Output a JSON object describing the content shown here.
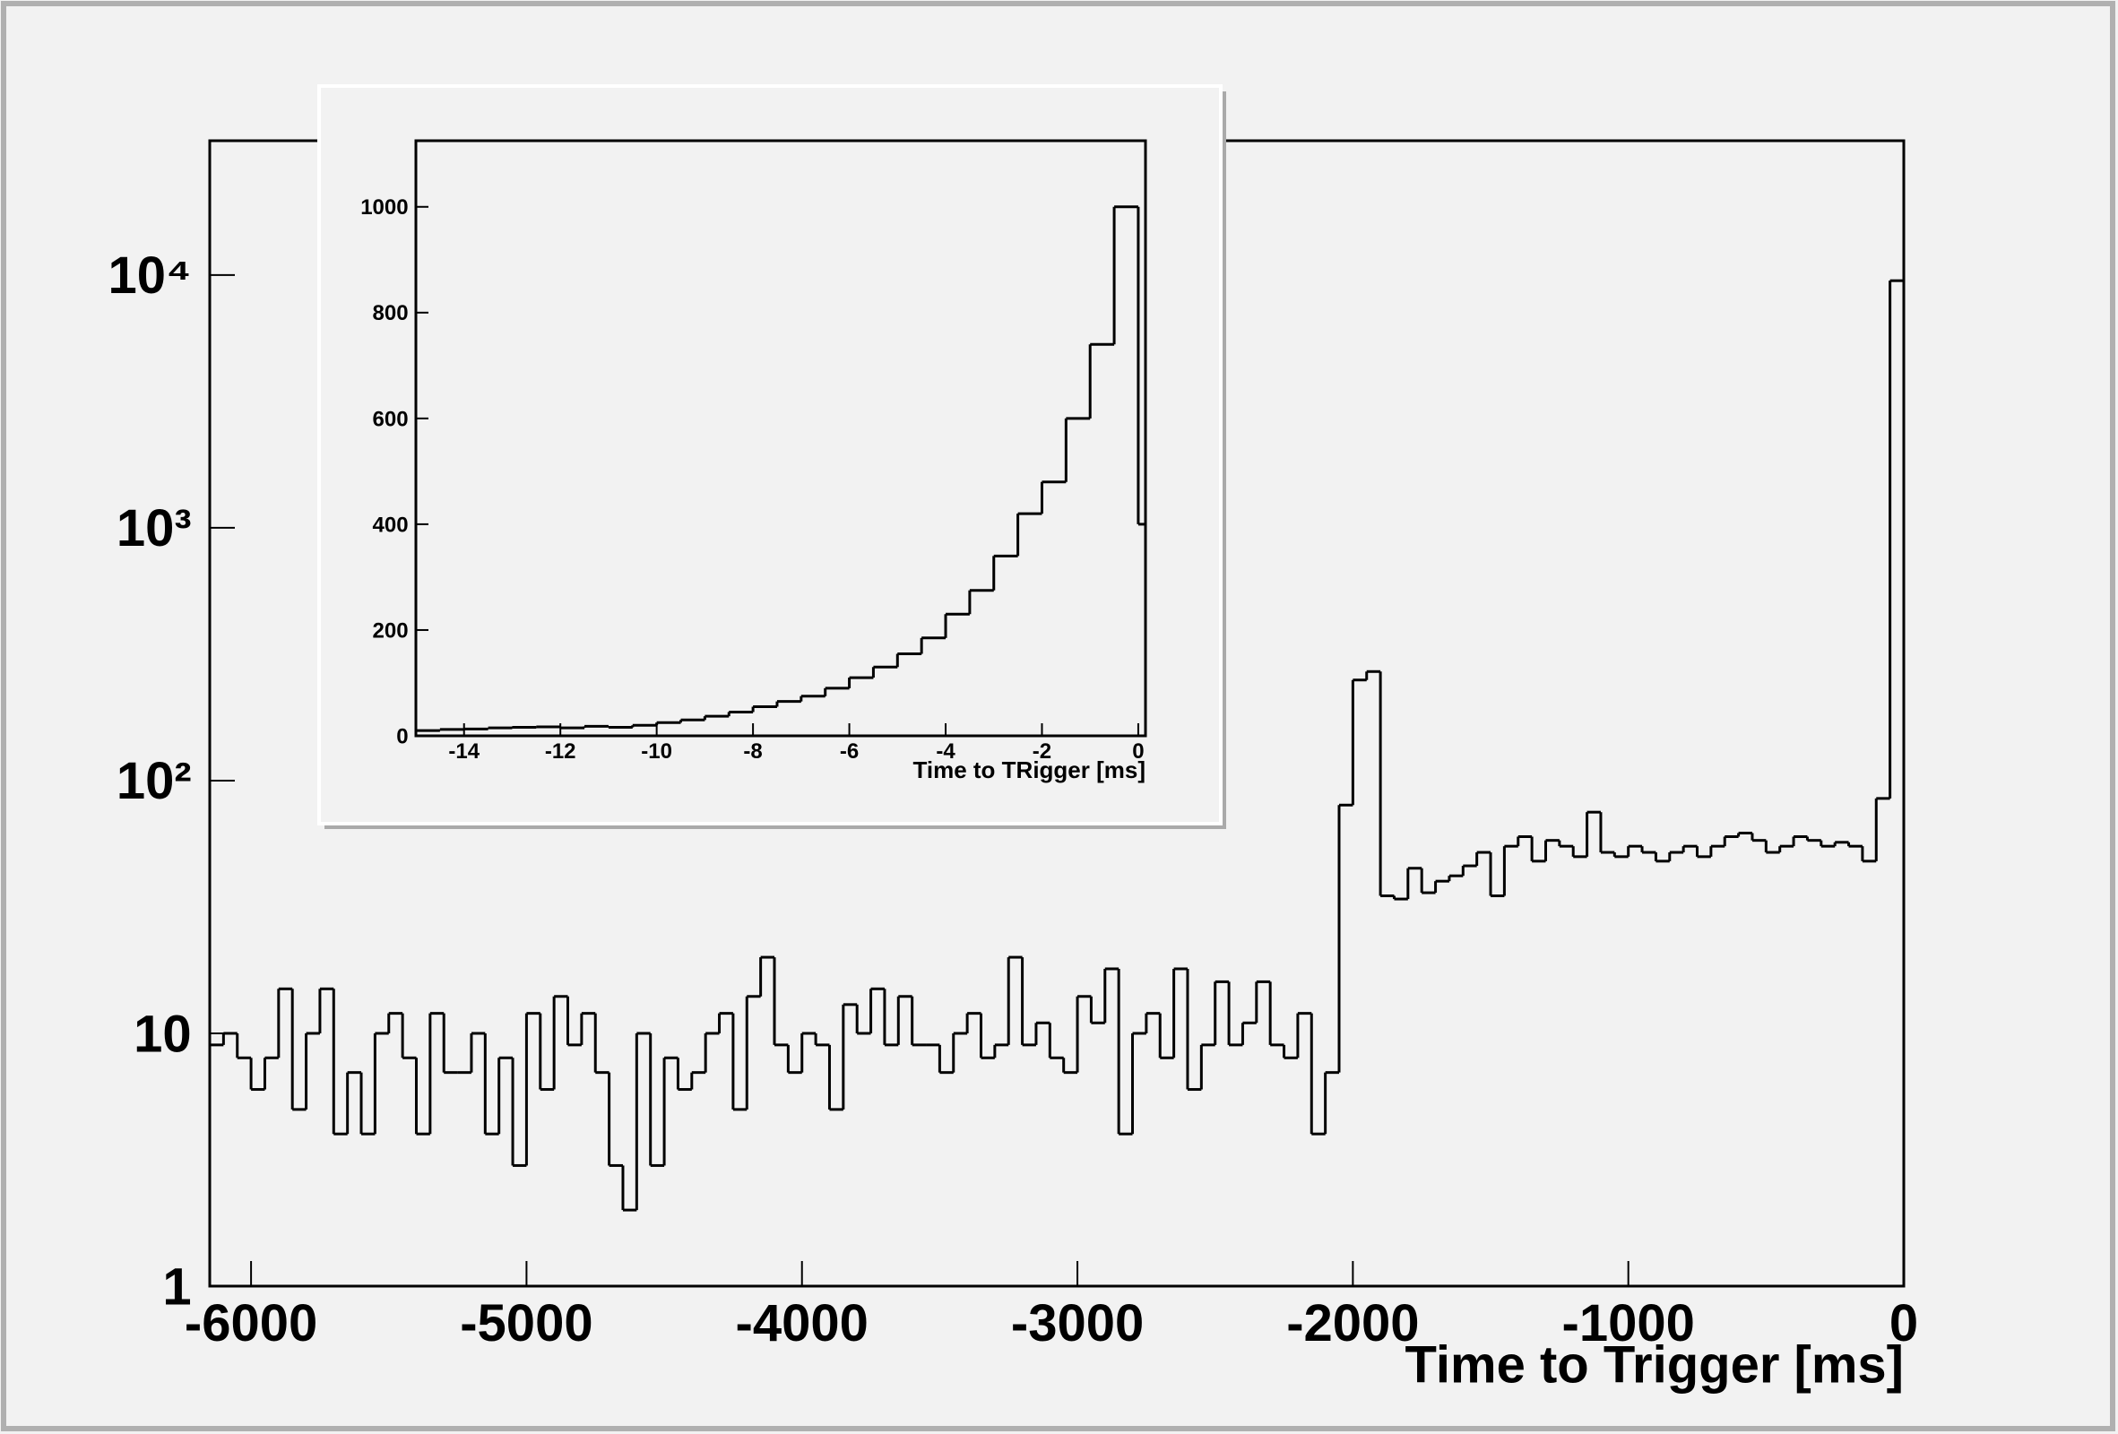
{
  "chart_data": [
    {
      "type": "histogram",
      "log_y": true,
      "color": "#000000",
      "xlabel": "Time to Trigger [ms]",
      "bins": [
        -6150,
        -6100,
        -6050,
        -6000,
        -5950,
        -5900,
        -5850,
        -5800,
        -5750,
        -5700,
        -5650,
        -5600,
        -5550,
        -5500,
        -5450,
        -5400,
        -5350,
        -5300,
        -5250,
        -5200,
        -5150,
        -5100,
        -5050,
        -5000,
        -4950,
        -4900,
        -4850,
        -4800,
        -4750,
        -4700,
        -4650,
        -4600,
        -4550,
        -4500,
        -4450,
        -4400,
        -4350,
        -4300,
        -4250,
        -4200,
        -4150,
        -4100,
        -4050,
        -4000,
        -3950,
        -3900,
        -3850,
        -3800,
        -3750,
        -3700,
        -3650,
        -3600,
        -3550,
        -3500,
        -3450,
        -3400,
        -3350,
        -3300,
        -3250,
        -3200,
        -3150,
        -3100,
        -3050,
        -3000,
        -2950,
        -2900,
        -2850,
        -2800,
        -2750,
        -2700,
        -2650,
        -2600,
        -2550,
        -2500,
        -2450,
        -2400,
        -2350,
        -2300,
        -2250,
        -2200,
        -2150,
        -2100,
        -2050,
        -2000,
        -1950,
        -1900,
        -1850,
        -1800,
        -1750,
        -1700,
        -1650,
        -1600,
        -1550,
        -1500,
        -1450,
        -1400,
        -1350,
        -1300,
        -1250,
        -1200,
        -1150,
        -1100,
        -1050,
        -1000,
        -950,
        -900,
        -850,
        -800,
        -750,
        -700,
        -650,
        -600,
        -550,
        -500,
        -450,
        -400,
        -350,
        -300,
        -250,
        -200,
        -150,
        -100,
        -50,
        0
      ],
      "values": [
        9,
        10,
        8,
        6,
        8,
        15,
        5,
        10,
        15,
        4,
        7,
        4,
        10,
        12,
        8,
        4,
        12,
        7,
        7,
        10,
        4,
        8,
        3,
        12,
        6,
        14,
        9,
        12,
        7,
        3,
        2,
        10,
        3,
        8,
        6,
        7,
        10,
        12,
        5,
        14,
        20,
        9,
        7,
        10,
        9,
        5,
        13,
        10,
        15,
        9,
        14,
        9,
        9,
        7,
        10,
        12,
        8,
        9,
        20,
        9,
        11,
        8,
        7,
        14,
        11,
        18,
        4,
        10,
        12,
        8,
        18,
        6,
        9,
        16,
        9,
        11,
        16,
        9,
        8,
        12,
        4,
        7,
        80,
        250,
        270,
        35,
        34,
        45,
        36,
        40,
        42,
        46,
        52,
        35,
        55,
        60,
        48,
        58,
        55,
        50,
        75,
        52,
        50,
        55,
        52,
        48,
        52,
        55,
        50,
        55,
        60,
        62,
        58,
        52,
        55,
        60,
        58,
        55,
        57,
        55,
        48,
        85,
        9500
      ],
      "xlim": [
        -6150,
        0
      ],
      "xticks": [
        -6000,
        -5000,
        -4000,
        -3000,
        -2000,
        -1000,
        0
      ],
      "ylim": [
        1,
        34000
      ],
      "yticks": [
        1,
        10,
        {
          "value": 100,
          "label": "10²"
        },
        {
          "value": 1000,
          "label": "10³"
        },
        {
          "value": 10000,
          "label": "10⁴"
        }
      ]
    },
    {
      "type": "histogram",
      "log_y": false,
      "color": "#000000",
      "xlabel": "Time to TRigger [ms]",
      "bins": [
        -15,
        -14.5,
        -14,
        -13.5,
        -13,
        -12.5,
        -12,
        -11.5,
        -11,
        -10.5,
        -10,
        -9.5,
        -9,
        -8.5,
        -8,
        -7.5,
        -7,
        -6.5,
        -6,
        -5.5,
        -5,
        -4.5,
        -4,
        -3.5,
        -3,
        -2.5,
        -2,
        -1.5,
        -1,
        -0.5,
        0,
        0.15
      ],
      "values": [
        10,
        12,
        13,
        15,
        16,
        17,
        15,
        18,
        16,
        20,
        25,
        30,
        37,
        45,
        55,
        65,
        75,
        90,
        110,
        130,
        155,
        185,
        230,
        275,
        340,
        420,
        480,
        600,
        740,
        1000,
        400
      ],
      "xlim": [
        -15,
        0.15
      ],
      "xticks": [
        -14,
        -12,
        -10,
        -8,
        -6,
        -4,
        -2,
        0
      ],
      "ylim": [
        0,
        1125
      ],
      "yticks": [
        0,
        200,
        400,
        600,
        800,
        1000
      ]
    }
  ]
}
